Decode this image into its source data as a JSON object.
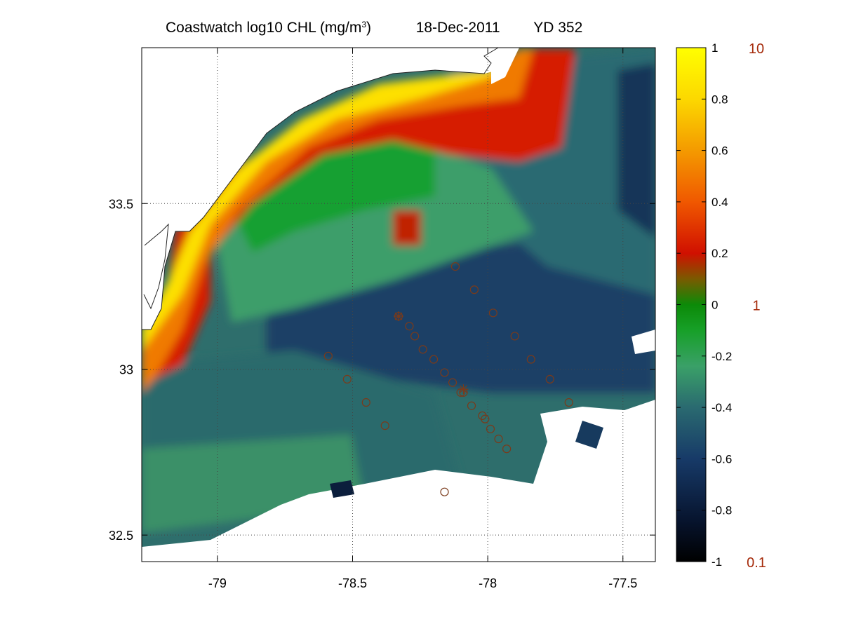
{
  "title": {
    "main_prefix": "Coastwatch  log10  CHL (mg/m",
    "main_sup": "3",
    "main_suffix": ")",
    "date": "18-Dec-2011",
    "yd": "YD 352"
  },
  "map": {
    "lon_ticks": [
      "-79",
      "-78.5",
      "-78",
      "-77.5"
    ],
    "lat_ticks": [
      "33.5",
      "33",
      "32.5"
    ],
    "lon_values": [
      -79,
      -78.5,
      -78,
      -77.5
    ],
    "lat_values": [
      33.5,
      33.0,
      32.5
    ],
    "lon_range": [
      -79.28,
      -77.38
    ],
    "lat_range": [
      32.42,
      33.97
    ],
    "grid": "dotted",
    "stations": [
      [
        -78.12,
        33.31
      ],
      [
        -78.05,
        33.24
      ],
      [
        -77.98,
        33.17
      ],
      [
        -77.9,
        33.1
      ],
      [
        -77.84,
        33.03
      ],
      [
        -77.77,
        32.97
      ],
      [
        -77.7,
        32.9
      ],
      [
        -78.33,
        33.16
      ],
      [
        -78.29,
        33.13
      ],
      [
        -78.27,
        33.1
      ],
      [
        -78.24,
        33.06
      ],
      [
        -78.2,
        33.03
      ],
      [
        -78.16,
        32.99
      ],
      [
        -78.13,
        32.96
      ],
      [
        -78.1,
        32.93
      ],
      [
        -78.09,
        32.93
      ],
      [
        -78.06,
        32.89
      ],
      [
        -78.02,
        32.86
      ],
      [
        -78.01,
        32.85
      ],
      [
        -77.99,
        32.82
      ],
      [
        -77.96,
        32.79
      ],
      [
        -77.93,
        32.76
      ],
      [
        -78.59,
        33.04
      ],
      [
        -78.52,
        32.97
      ],
      [
        -78.45,
        32.9
      ],
      [
        -78.38,
        32.83
      ],
      [
        -78.16,
        32.63
      ]
    ],
    "star_stations": [
      [
        -78.33,
        33.16
      ],
      [
        -78.09,
        32.94
      ]
    ]
  },
  "colorbar": {
    "ticks": [
      "1",
      "0.8",
      "0.6",
      "0.4",
      "0.2",
      "0",
      "-0.2",
      "-0.4",
      "-0.6",
      "-0.8",
      "-1"
    ],
    "tick_values": [
      1,
      0.8,
      0.6,
      0.4,
      0.2,
      0,
      -0.2,
      -0.4,
      -0.6,
      -0.8,
      -1
    ],
    "right_labels": [
      "10",
      "1",
      "0.1"
    ],
    "right_values": [
      1,
      0,
      -1
    ],
    "range": [
      -1,
      1
    ],
    "colormap_stops": [
      "#000000",
      "#0b1e3c",
      "#1d3f6b",
      "#2c6e6a",
      "#3a9a62",
      "#1fa030",
      "#0e9110",
      "#7a6a00",
      "#cc1a00",
      "#f05a00",
      "#f6a300",
      "#fde800",
      "#ffff00"
    ]
  }
}
